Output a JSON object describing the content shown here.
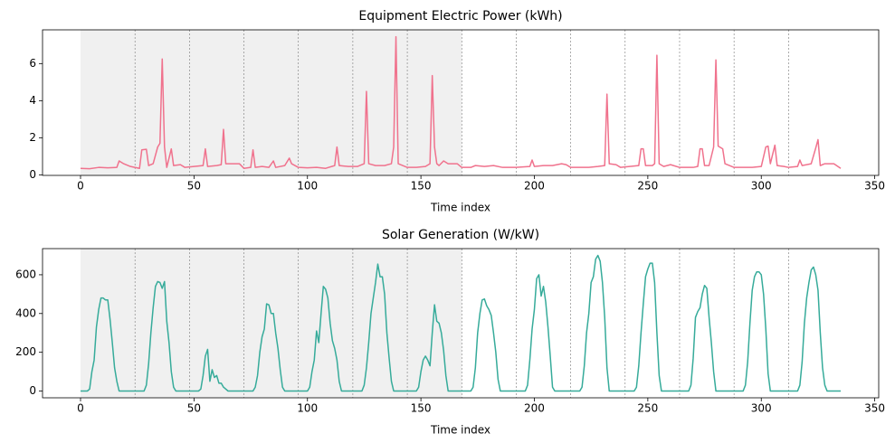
{
  "chart_data": [
    {
      "type": "line",
      "title": "Equipment Electric Power (kWh)",
      "xlabel": "Time index",
      "color": "#f0728d",
      "x": [
        0,
        4,
        8,
        12,
        16,
        17,
        19,
        22,
        26,
        27,
        29,
        30,
        32,
        34,
        35,
        36,
        37,
        38,
        40,
        41,
        44,
        46,
        50,
        54,
        55,
        56,
        60,
        62,
        63,
        64,
        66,
        70,
        72,
        75,
        76,
        77,
        80,
        83,
        85,
        86,
        90,
        92,
        93,
        96,
        100,
        104,
        108,
        112,
        113,
        114,
        118,
        122,
        125,
        126,
        127,
        130,
        134,
        137,
        138,
        139,
        140,
        144,
        148,
        152,
        154,
        155,
        156,
        157,
        158,
        160,
        162,
        166,
        168,
        172,
        174,
        178,
        182,
        186,
        190,
        192,
        198,
        199,
        200,
        204,
        208,
        212,
        214,
        216,
        220,
        224,
        228,
        231,
        232,
        233,
        236,
        238,
        242,
        246,
        247,
        248,
        249,
        252,
        253,
        254,
        255,
        257,
        260,
        264,
        268,
        270,
        272,
        273,
        274,
        275,
        277,
        279,
        280,
        281,
        283,
        284,
        288,
        292,
        296,
        300,
        302,
        303,
        304,
        306,
        307,
        310,
        312,
        316,
        317,
        318,
        322,
        324,
        325,
        326,
        328,
        330,
        332,
        335
      ],
      "values": [
        0.35,
        0.33,
        0.4,
        0.38,
        0.4,
        0.75,
        0.6,
        0.45,
        0.35,
        1.35,
        1.38,
        0.5,
        0.6,
        1.5,
        1.7,
        6.25,
        1.5,
        0.4,
        1.4,
        0.5,
        0.55,
        0.4,
        0.45,
        0.5,
        1.4,
        0.45,
        0.5,
        0.55,
        2.45,
        0.6,
        0.6,
        0.6,
        0.35,
        0.4,
        1.35,
        0.4,
        0.45,
        0.4,
        0.75,
        0.4,
        0.5,
        0.9,
        0.6,
        0.4,
        0.38,
        0.4,
        0.35,
        0.5,
        1.5,
        0.5,
        0.45,
        0.45,
        0.6,
        4.5,
        0.6,
        0.5,
        0.5,
        0.6,
        1.5,
        7.45,
        0.6,
        0.4,
        0.4,
        0.45,
        0.6,
        5.35,
        1.5,
        0.6,
        0.5,
        0.75,
        0.6,
        0.6,
        0.4,
        0.4,
        0.5,
        0.45,
        0.5,
        0.4,
        0.4,
        0.4,
        0.45,
        0.8,
        0.45,
        0.5,
        0.5,
        0.6,
        0.55,
        0.4,
        0.4,
        0.4,
        0.45,
        0.5,
        4.35,
        0.6,
        0.55,
        0.4,
        0.45,
        0.5,
        1.4,
        1.4,
        0.5,
        0.5,
        0.6,
        6.45,
        0.6,
        0.45,
        0.55,
        0.4,
        0.4,
        0.4,
        0.45,
        1.4,
        1.4,
        0.5,
        0.5,
        1.5,
        6.2,
        1.55,
        1.4,
        0.6,
        0.4,
        0.4,
        0.4,
        0.45,
        1.5,
        1.55,
        0.6,
        1.6,
        0.5,
        0.45,
        0.4,
        0.45,
        0.8,
        0.5,
        0.6,
        1.45,
        1.9,
        0.5,
        0.6,
        0.6,
        0.6,
        0.35
      ],
      "xlim": [
        -16.75,
        351.75
      ],
      "xticks": [
        0,
        50,
        100,
        150,
        200,
        250,
        300,
        350
      ],
      "ylim": [
        -0.03,
        7.82
      ],
      "yticks": [
        0,
        2,
        4,
        6
      ],
      "shaded_span": [
        0,
        168
      ],
      "shade_color": "#f0f0f0",
      "vlines": [
        24,
        48,
        72,
        96,
        120,
        144,
        168,
        192,
        216,
        240,
        264,
        288,
        312
      ]
    },
    {
      "type": "line",
      "title": "Solar Generation (W/kW)",
      "xlabel": "Time index",
      "color": "#36ab9a",
      "x": [
        0,
        1,
        2,
        3,
        4,
        5,
        6,
        7,
        8,
        9,
        10,
        11,
        12,
        13,
        14,
        15,
        16,
        17,
        23,
        24,
        28,
        29,
        30,
        31,
        32,
        33,
        34,
        35,
        36,
        37,
        38,
        39,
        40,
        41,
        42,
        48,
        52,
        53,
        54,
        55,
        56,
        57,
        58,
        59,
        60,
        61,
        62,
        63,
        64,
        65,
        72,
        76,
        77,
        78,
        79,
        80,
        81,
        82,
        83,
        84,
        85,
        86,
        87,
        88,
        89,
        90,
        96,
        100,
        101,
        102,
        103,
        104,
        105,
        106,
        107,
        108,
        109,
        110,
        111,
        112,
        113,
        114,
        115,
        120,
        124,
        125,
        126,
        127,
        128,
        129,
        130,
        131,
        132,
        133,
        134,
        135,
        136,
        137,
        138,
        144,
        148,
        149,
        150,
        151,
        152,
        153,
        154,
        155,
        156,
        157,
        158,
        159,
        160,
        161,
        162,
        168,
        172,
        173,
        174,
        175,
        176,
        177,
        178,
        179,
        180,
        181,
        182,
        183,
        184,
        185,
        192,
        196,
        197,
        198,
        199,
        200,
        201,
        202,
        203,
        204,
        205,
        206,
        207,
        208,
        209,
        216,
        220,
        221,
        222,
        223,
        224,
        225,
        226,
        227,
        228,
        229,
        230,
        231,
        232,
        233,
        240,
        244,
        245,
        246,
        247,
        248,
        249,
        250,
        251,
        252,
        253,
        254,
        255,
        256,
        264,
        268,
        269,
        270,
        271,
        272,
        273,
        274,
        275,
        276,
        277,
        278,
        279,
        280,
        288,
        292,
        293,
        294,
        295,
        296,
        297,
        298,
        299,
        300,
        301,
        302,
        303,
        304,
        312,
        316,
        317,
        318,
        319,
        320,
        321,
        322,
        323,
        324,
        325,
        326,
        327,
        328,
        329,
        335
      ],
      "values": [
        0,
        0,
        0,
        0,
        10,
        100,
        160,
        330,
        420,
        480,
        480,
        470,
        470,
        370,
        250,
        120,
        50,
        0,
        0,
        0,
        0,
        30,
        140,
        300,
        430,
        540,
        565,
        560,
        530,
        565,
        360,
        250,
        100,
        20,
        0,
        0,
        0,
        10,
        80,
        180,
        215,
        50,
        110,
        70,
        80,
        40,
        40,
        20,
        10,
        0,
        0,
        0,
        20,
        80,
        200,
        280,
        320,
        450,
        445,
        400,
        400,
        300,
        220,
        110,
        20,
        0,
        0,
        0,
        20,
        100,
        160,
        310,
        250,
        400,
        540,
        525,
        480,
        350,
        260,
        220,
        160,
        50,
        0,
        0,
        0,
        30,
        120,
        250,
        400,
        480,
        560,
        655,
        590,
        590,
        500,
        300,
        170,
        50,
        0,
        0,
        0,
        20,
        100,
        160,
        180,
        160,
        130,
        300,
        445,
        360,
        350,
        300,
        210,
        80,
        0,
        0,
        0,
        20,
        120,
        300,
        400,
        470,
        475,
        440,
        420,
        390,
        300,
        200,
        60,
        0,
        0,
        0,
        30,
        160,
        320,
        420,
        580,
        600,
        490,
        540,
        460,
        330,
        180,
        20,
        0,
        0,
        0,
        20,
        130,
        300,
        400,
        560,
        590,
        680,
        700,
        670,
        560,
        380,
        120,
        0,
        0,
        0,
        20,
        130,
        300,
        450,
        590,
        630,
        660,
        660,
        560,
        300,
        80,
        0,
        0,
        0,
        30,
        170,
        380,
        410,
        430,
        500,
        545,
        530,
        380,
        250,
        100,
        0,
        0,
        0,
        30,
        150,
        350,
        520,
        590,
        615,
        615,
        600,
        500,
        320,
        90,
        0,
        0,
        0,
        30,
        150,
        350,
        480,
        560,
        625,
        640,
        600,
        520,
        300,
        120,
        30,
        0,
        0
      ],
      "xlim": [
        -16.75,
        351.75
      ],
      "xticks": [
        0,
        50,
        100,
        150,
        200,
        250,
        300,
        350
      ],
      "ylim": [
        -35,
        735
      ],
      "yticks": [
        0,
        200,
        400,
        600
      ],
      "shaded_span": [
        0,
        168
      ],
      "shade_color": "#f0f0f0",
      "vlines": [
        24,
        48,
        72,
        96,
        120,
        144,
        168,
        192,
        216,
        240,
        264,
        288,
        312
      ]
    }
  ]
}
